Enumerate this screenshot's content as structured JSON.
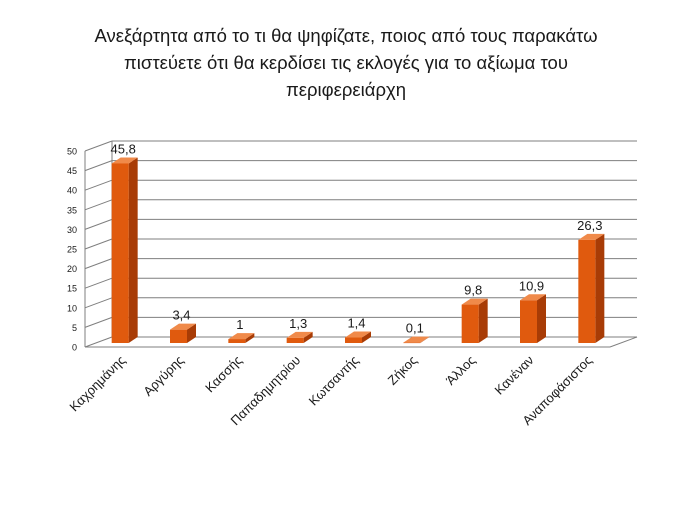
{
  "chart_data": {
    "type": "bar",
    "title": "Ανεξάρτητα από το τι θα ψηφίζατε, ποιος από τους παρακάτω πιστεύετε ότι θα κερδίσει τις εκλογές για το αξίωμα του περιφερειάρχη",
    "categories": [
      "Καχρημάνης",
      "Αργύρης",
      "Κασσής",
      "Παπαδημητρίου",
      "Κωτσαντής",
      "Ζήκος",
      "Άλλος",
      "Κανέναν",
      "Αναποφάσιστος"
    ],
    "values": [
      45.8,
      3.4,
      1,
      1.3,
      1.4,
      0.1,
      9.8,
      10.9,
      26.3
    ],
    "value_labels": [
      "45,8",
      "3,4",
      "1",
      "1,3",
      "1,4",
      "0,1",
      "9,8",
      "10,9",
      "26,3"
    ],
    "y_ticks": [
      "0",
      "5",
      "10",
      "15",
      "20",
      "25",
      "30",
      "35",
      "40",
      "45",
      "50"
    ],
    "ylim": [
      0,
      50
    ],
    "xlabel": "",
    "ylabel": "",
    "grid": true,
    "legend": "none",
    "colors": {
      "bar_front": "#e05a0e",
      "bar_side": "#a83c06",
      "bar_top": "#f08a4a",
      "grid": "#7f7f7f",
      "text": "#1a1a1a"
    }
  }
}
